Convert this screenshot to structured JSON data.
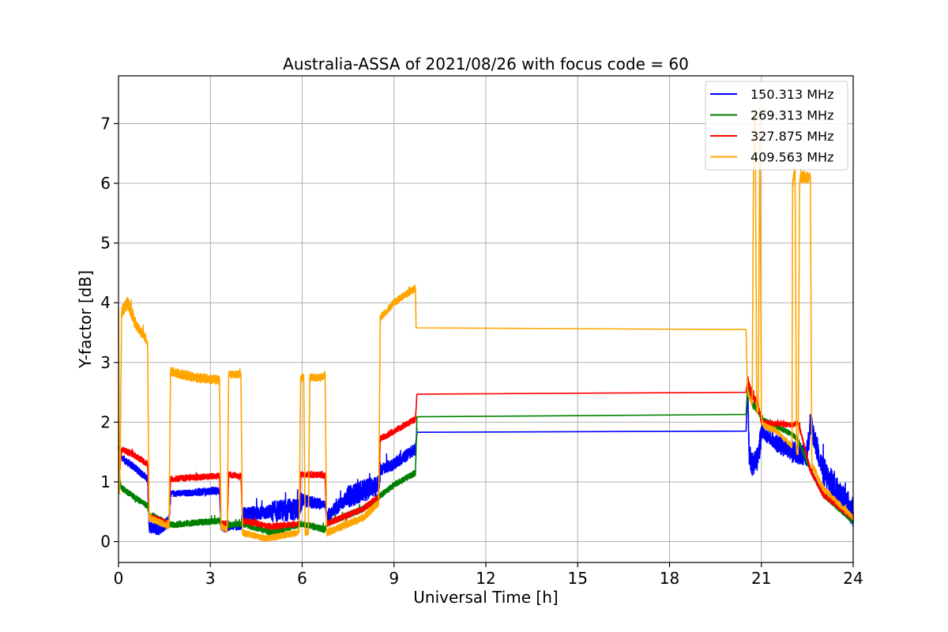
{
  "chart_data": {
    "type": "line",
    "title": "Australia-ASSA of 2021/08/26 with focus code = 60",
    "xlabel": "Universal Time [h]",
    "ylabel": "Y-factor [dB]",
    "xlim": [
      0,
      24
    ],
    "ylim": [
      -0.35,
      7.8
    ],
    "xticks": [
      0,
      3,
      6,
      9,
      12,
      15,
      18,
      21,
      24
    ],
    "yticks": [
      0,
      1,
      2,
      3,
      4,
      5,
      6,
      7
    ],
    "grid": true,
    "legend_position": "top-right",
    "series": [
      {
        "name": "150.313 MHz",
        "color": "#0000ff",
        "x": [
          0,
          0.05,
          0.1,
          0.5,
          0.95,
          1.0,
          1.3,
          1.65,
          1.7,
          2.5,
          3.0,
          3.3,
          3.35,
          3.55,
          3.6,
          4.0,
          4.05,
          5.0,
          5.9,
          6.0,
          6.6,
          6.75,
          6.8,
          7.5,
          8.5,
          8.55,
          9.0,
          9.7,
          9.75,
          20.5,
          20.55,
          20.6,
          20.7,
          20.9,
          21.0,
          21.5,
          22.0,
          22.5,
          22.6,
          23.0,
          23.5,
          24.0
        ],
        "y": [
          1.8,
          1.6,
          1.4,
          1.25,
          1.05,
          0.25,
          0.2,
          0.35,
          0.8,
          0.82,
          0.85,
          0.85,
          0.25,
          0.2,
          0.25,
          0.25,
          0.45,
          0.5,
          0.55,
          0.7,
          0.62,
          0.62,
          0.4,
          0.75,
          0.95,
          1.2,
          1.3,
          1.55,
          1.83,
          1.85,
          2.6,
          1.5,
          1.3,
          1.4,
          1.85,
          1.65,
          1.5,
          1.45,
          2.0,
          1.2,
          0.8,
          0.5
        ],
        "noise": [
          0.03,
          0.03,
          0.06,
          0.06,
          0.06,
          0.1,
          0.1,
          0.1,
          0.05,
          0.06,
          0.06,
          0.06,
          0.06,
          0.06,
          0.06,
          0.06,
          0.12,
          0.18,
          0.18,
          0.1,
          0.06,
          0.06,
          0.12,
          0.18,
          0.18,
          0.1,
          0.1,
          0.07,
          0,
          0,
          0.15,
          0.2,
          0.2,
          0.2,
          0.12,
          0.15,
          0.18,
          0.25,
          0.2,
          0.25,
          0.25,
          0.2
        ]
      },
      {
        "name": "269.313 MHz",
        "color": "#008000",
        "x": [
          0,
          0.05,
          0.1,
          0.5,
          0.95,
          1.0,
          1.65,
          1.7,
          3.3,
          3.35,
          3.6,
          4.05,
          5.0,
          6.0,
          6.75,
          6.8,
          8.0,
          8.5,
          9.0,
          9.7,
          9.75,
          20.5,
          20.55,
          20.7,
          20.9,
          21.0,
          22.0,
          22.2,
          22.6,
          23.0,
          24.0
        ],
        "y": [
          1.6,
          1.0,
          0.9,
          0.75,
          0.6,
          0.45,
          0.3,
          0.28,
          0.35,
          0.3,
          0.28,
          0.3,
          0.15,
          0.3,
          0.2,
          0.3,
          0.55,
          0.75,
          0.95,
          1.15,
          2.09,
          2.13,
          2.6,
          2.3,
          2.2,
          2.05,
          1.8,
          1.7,
          1.2,
          0.8,
          0.35
        ],
        "noise": [
          0.03,
          0.05,
          0.05,
          0.05,
          0.05,
          0.05,
          0.05,
          0.05,
          0.05,
          0.05,
          0.05,
          0.05,
          0.05,
          0.05,
          0.05,
          0.05,
          0.05,
          0.05,
          0.05,
          0.05,
          0,
          0,
          0.08,
          0.06,
          0.05,
          0.04,
          0.04,
          0.04,
          0.04,
          0.05,
          0.05
        ]
      },
      {
        "name": "327.875 MHz",
        "color": "#ff0000",
        "x": [
          0,
          0.05,
          0.1,
          0.5,
          0.95,
          1.0,
          1.65,
          1.7,
          3.3,
          3.35,
          3.55,
          3.6,
          4.0,
          4.05,
          5.0,
          5.9,
          5.95,
          6.6,
          6.75,
          6.8,
          8.0,
          8.5,
          8.55,
          9.7,
          9.75,
          20.5,
          20.55,
          20.7,
          20.9,
          21.0,
          22.0,
          22.2,
          22.6,
          23.0,
          24.0
        ],
        "y": [
          1.6,
          1.2,
          1.55,
          1.45,
          1.3,
          0.42,
          0.3,
          1.05,
          1.1,
          0.3,
          0.3,
          1.12,
          1.1,
          0.35,
          0.25,
          0.3,
          1.12,
          1.12,
          1.1,
          0.3,
          0.55,
          0.75,
          1.72,
          2.05,
          2.47,
          2.5,
          2.7,
          2.45,
          2.3,
          2.0,
          1.95,
          2.0,
          1.2,
          0.8,
          0.4
        ],
        "noise": [
          0.03,
          0.05,
          0.05,
          0.05,
          0.05,
          0.05,
          0.05,
          0.05,
          0.05,
          0.05,
          0.05,
          0.05,
          0.05,
          0.05,
          0.05,
          0.05,
          0.05,
          0.05,
          0.05,
          0.05,
          0.05,
          0.05,
          0.05,
          0.05,
          0,
          0,
          0.08,
          0.06,
          0.05,
          0.04,
          0.04,
          0.04,
          0.04,
          0.05,
          0.05
        ]
      },
      {
        "name": "409.563 MHz",
        "color": "#ffa500",
        "x": [
          0,
          0.03,
          0.06,
          0.1,
          0.3,
          0.6,
          0.9,
          0.95,
          1.0,
          1.65,
          1.7,
          2.5,
          3.3,
          3.35,
          3.55,
          3.6,
          4.0,
          4.05,
          4.8,
          5.9,
          5.95,
          6.05,
          6.1,
          6.2,
          6.25,
          6.65,
          6.75,
          6.8,
          8.0,
          8.5,
          8.55,
          9.0,
          9.7,
          9.72,
          20.5,
          20.55,
          20.7,
          20.75,
          20.8,
          20.85,
          20.9,
          20.95,
          21.0,
          21.05,
          21.5,
          22.0,
          22.02,
          22.1,
          22.15,
          22.2,
          22.25,
          22.3,
          22.6,
          22.65,
          23.0,
          24.0
        ],
        "y": [
          3.9,
          0.8,
          1.5,
          3.85,
          4.0,
          3.6,
          3.4,
          3.3,
          0.4,
          0.25,
          2.85,
          2.75,
          2.7,
          0.25,
          0.2,
          2.8,
          2.8,
          0.15,
          0.05,
          0.15,
          2.75,
          2.75,
          0.15,
          0.15,
          2.75,
          2.75,
          2.8,
          0.15,
          0.4,
          0.65,
          3.75,
          4.0,
          4.25,
          3.58,
          3.55,
          2.5,
          2.3,
          6.8,
          7.2,
          2.2,
          2.2,
          7.3,
          2.1,
          1.95,
          1.85,
          1.6,
          6.0,
          6.2,
          1.5,
          1.5,
          6.0,
          6.1,
          6.1,
          1.3,
          0.9,
          0.4
        ],
        "noise": [
          0.05,
          0.05,
          0.05,
          0.1,
          0.1,
          0.08,
          0.08,
          0.08,
          0.05,
          0.05,
          0.08,
          0.08,
          0.08,
          0.05,
          0.05,
          0.06,
          0.06,
          0.05,
          0.05,
          0.05,
          0.06,
          0.06,
          0.05,
          0.05,
          0.06,
          0.06,
          0.06,
          0.06,
          0.06,
          0.06,
          0.06,
          0.06,
          0.06,
          0,
          0,
          0.05,
          0.05,
          0.1,
          0.1,
          0.05,
          0.05,
          0.1,
          0.05,
          0.05,
          0.04,
          0.05,
          0.1,
          0.1,
          0.05,
          0.05,
          0.1,
          0.1,
          0.1,
          0.05,
          0.05,
          0.05
        ]
      }
    ]
  }
}
